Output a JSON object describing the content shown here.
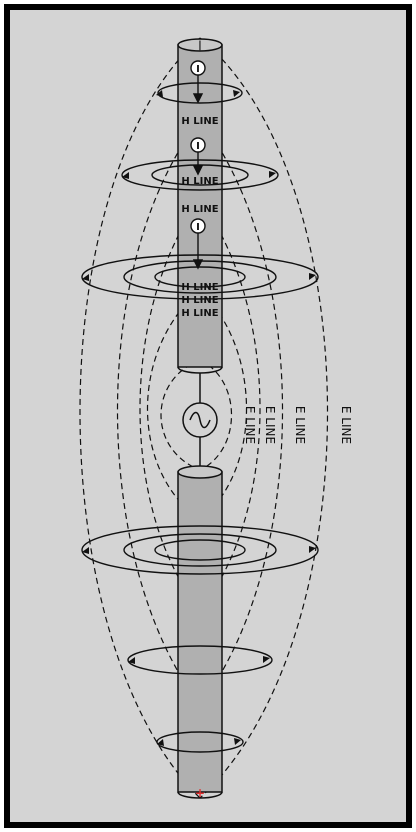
{
  "diagram": {
    "colors": {
      "background": "#d4d4d4",
      "frame": "#000000",
      "conductor": "#b0b0b0",
      "line": "#111111",
      "plus_marker": "#e03030"
    },
    "h_line_label": "H LINE",
    "e_line_label": "E LINE",
    "current_symbol": "I",
    "source_symbol": "~",
    "terminal_symbol": "+"
  }
}
